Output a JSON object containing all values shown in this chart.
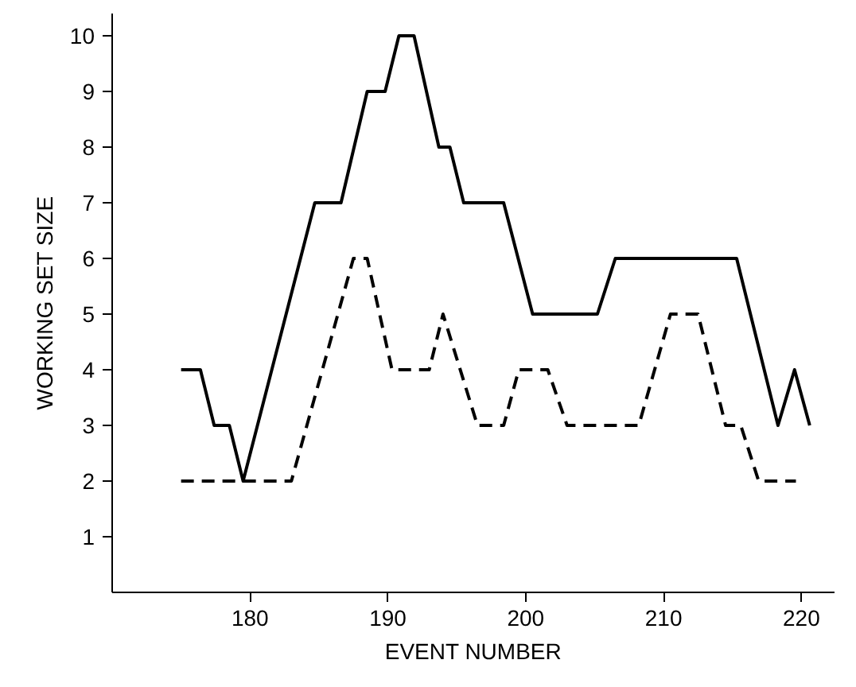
{
  "chart_data": {
    "type": "line",
    "xlabel": "EVENT NUMBER",
    "ylabel": "WORKING SET SIZE",
    "xlim": [
      170,
      222.4
    ],
    "ylim": [
      0,
      10.4
    ],
    "xticks": [
      180,
      190,
      200,
      210,
      220
    ],
    "yticks": [
      1,
      2,
      3,
      4,
      5,
      6,
      7,
      8,
      9,
      10
    ],
    "marker": "none",
    "series": [
      {
        "color": "#000000",
        "line_style": "solid",
        "x": [
          175,
          176.4,
          177.4,
          178.5,
          179.5,
          184.7,
          186.6,
          188.5,
          189.8,
          190.8,
          191.9,
          193.7,
          194.5,
          195.5,
          198.4,
          200.5,
          205.2,
          206.5,
          215.3,
          218.3,
          219.5,
          220.6
        ],
        "values": [
          4,
          4,
          3,
          3,
          2,
          7,
          7,
          9,
          9,
          10,
          10,
          8,
          8,
          7,
          7,
          5,
          5,
          6,
          6,
          3,
          4,
          3
        ]
      },
      {
        "color": "#000000",
        "line_style": "dashed",
        "x": [
          175,
          183,
          187.5,
          188.5,
          190.3,
          193,
          194,
          196.5,
          198.4,
          199.5,
          201.6,
          203,
          208.2,
          210.5,
          212.5,
          214.5,
          215.6,
          216.9,
          219.6
        ],
        "values": [
          2,
          2,
          6,
          6,
          4,
          4,
          5,
          3,
          3,
          4,
          4,
          3,
          3,
          5,
          5,
          3,
          3,
          2,
          2
        ]
      }
    ]
  }
}
